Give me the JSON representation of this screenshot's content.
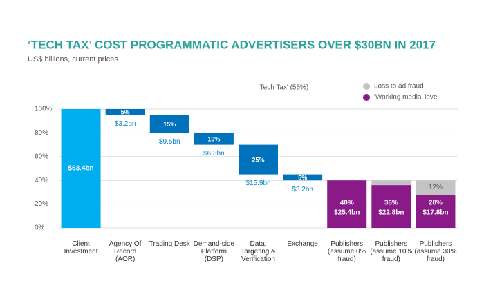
{
  "chart_data": {
    "type": "waterfall",
    "title": "‘TECH TAX’ COST PROGRAMMATIC ADVERTISERS OVER $30BN IN 2017",
    "subtitle": "US$ billions, current prices",
    "annotation": "'Tech Tax' (55%)",
    "categories": [
      "Client Investment",
      "Agency Of Record (AOR)",
      "Trading Desk",
      "Demand-side Platform (DSP)",
      "Data, Targeting & Verification",
      "Exchange",
      "Publishers (assume 0% fraud)",
      "Publishers (assume 10% fraud)",
      "Publishers (assume 30% fraud)"
    ],
    "measure": [
      "absolute",
      "relative",
      "relative",
      "relative",
      "relative",
      "relative",
      "absolute",
      "absolute",
      "absolute"
    ],
    "values": [
      100,
      5,
      15,
      10,
      25,
      5,
      40,
      36,
      28
    ],
    "value_labels": [
      null,
      "5%",
      "15%",
      "10%",
      "25%",
      "5%",
      "40%",
      "36%",
      "28%"
    ],
    "amount_labels": [
      "$63.4bn",
      "$3.2bn",
      "$9.5bn",
      "$6.3bn",
      "$15.9bn",
      "$3.2bn",
      "$25.4bn",
      "$22.8bn",
      "$17.8bn"
    ],
    "colors": [
      "#00aeef",
      "#0072bc",
      "#0072bc",
      "#0072bc",
      "#0072bc",
      "#0072bc",
      "#8b1a89",
      "#8b1a89",
      "#8b1a89"
    ],
    "fraud": [
      null,
      null,
      null,
      null,
      null,
      null,
      null,
      4,
      12
    ],
    "fraud_labels": [
      null,
      null,
      null,
      null,
      null,
      null,
      null,
      null,
      "12%"
    ],
    "legend": [
      {
        "name": "Loss to ad fraud",
        "color": "#c4c4c4"
      },
      {
        "name": "'Working media' level",
        "color": "#8b1a89"
      }
    ],
    "ylim": [
      0,
      100
    ],
    "yticks": [
      {
        "value": 0,
        "label": "0%"
      },
      {
        "value": 20,
        "label": "20%"
      },
      {
        "value": 40,
        "label": "40%"
      },
      {
        "value": 60,
        "label": "60%"
      },
      {
        "value": 80,
        "label": "80%"
      },
      {
        "value": 100,
        "label": "100%"
      }
    ],
    "grid": true
  }
}
